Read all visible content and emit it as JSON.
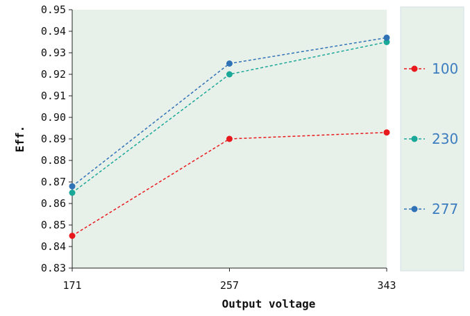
{
  "chart_data": {
    "type": "line",
    "xlabel": "Output voltage",
    "ylabel": "Eff.",
    "categories": [
      "171",
      "257",
      "343"
    ],
    "y_ticks": [
      "0.83",
      "0.84",
      "0.85",
      "0.86",
      "0.87",
      "0.88",
      "0.89",
      "0.90",
      "0.91",
      "0.92",
      "0.93",
      "0.94",
      "0.95"
    ],
    "ylim": [
      0.83,
      0.95
    ],
    "grid": false,
    "legend_position": "right",
    "plot_background": "#e8f0ea",
    "series": [
      {
        "name": "100",
        "values": [
          0.845,
          0.89,
          0.893
        ],
        "color": "#e8191c"
      },
      {
        "name": "230",
        "values": [
          0.865,
          0.92,
          0.935
        ],
        "color": "#1aa898"
      },
      {
        "name": "277",
        "values": [
          0.868,
          0.925,
          0.937
        ],
        "color": "#2f72b6"
      }
    ]
  }
}
